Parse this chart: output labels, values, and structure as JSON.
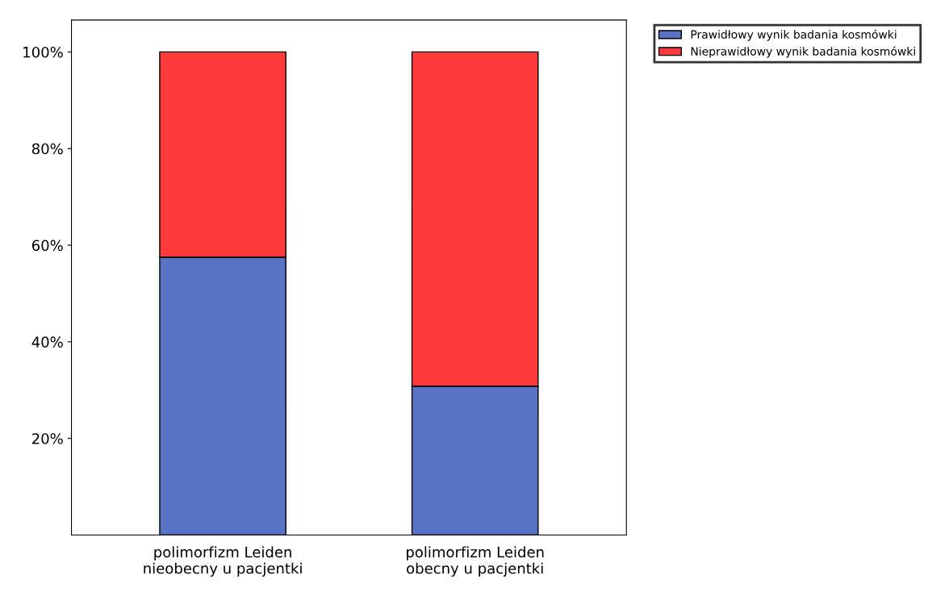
{
  "chart_data": {
    "type": "bar",
    "stacked": true,
    "categories": [
      "polimorfizm Leiden\nnieobecny u pacjentki",
      "polimorfizm Leiden\nobecny u pacjentki"
    ],
    "series": [
      {
        "name": "Prawidłowy wynik badania kosmówki",
        "color": "#5a72c4",
        "values": [
          57.5,
          30.8
        ]
      },
      {
        "name": "Nieprawidłowy wynik badania kosmówki",
        "color": "#ff3a3a",
        "values": [
          42.5,
          69.2
        ]
      }
    ],
    "ylim": [
      0,
      106.6
    ],
    "yticks": [
      {
        "value": 20,
        "label": "20%"
      },
      {
        "value": 40,
        "label": "40%"
      },
      {
        "value": 60,
        "label": "60%"
      },
      {
        "value": 80,
        "label": "80%"
      },
      {
        "value": 100,
        "label": "100%"
      }
    ],
    "grid": false,
    "legend": "top right"
  }
}
